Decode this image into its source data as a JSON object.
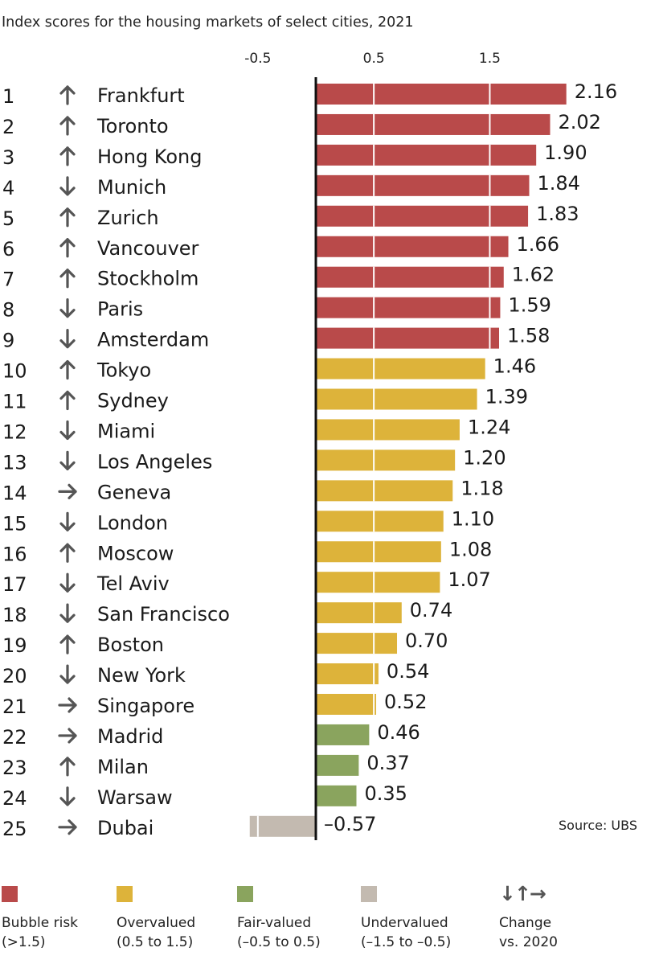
{
  "chart_data": {
    "type": "bar",
    "orientation": "horizontal",
    "title": "Index scores for the housing markets of select cities, 2021",
    "x_ticks": [
      "-0.5",
      "0.5",
      "1.5"
    ],
    "tick_values": [
      -0.5,
      0.5,
      1.5
    ],
    "xlim": [
      -0.57,
      2.2
    ],
    "grid": true,
    "rows": [
      {
        "rank": "1",
        "change": "up",
        "city": "Frankfurt",
        "value": 2.16,
        "label": "2.16",
        "category": "bubble"
      },
      {
        "rank": "2",
        "change": "up",
        "city": "Toronto",
        "value": 2.02,
        "label": "2.02",
        "category": "bubble"
      },
      {
        "rank": "3",
        "change": "up",
        "city": "Hong Kong",
        "value": 1.9,
        "label": "1.90",
        "category": "bubble"
      },
      {
        "rank": "4",
        "change": "down",
        "city": "Munich",
        "value": 1.84,
        "label": "1.84",
        "category": "bubble"
      },
      {
        "rank": "5",
        "change": "up",
        "city": "Zurich",
        "value": 1.83,
        "label": "1.83",
        "category": "bubble"
      },
      {
        "rank": "6",
        "change": "up",
        "city": "Vancouver",
        "value": 1.66,
        "label": "1.66",
        "category": "bubble"
      },
      {
        "rank": "7",
        "change": "up",
        "city": "Stockholm",
        "value": 1.62,
        "label": "1.62",
        "category": "bubble"
      },
      {
        "rank": "8",
        "change": "down",
        "city": "Paris",
        "value": 1.59,
        "label": "1.59",
        "category": "bubble"
      },
      {
        "rank": "9",
        "change": "down",
        "city": "Amsterdam",
        "value": 1.58,
        "label": "1.58",
        "category": "bubble"
      },
      {
        "rank": "10",
        "change": "up",
        "city": "Tokyo",
        "value": 1.46,
        "label": "1.46",
        "category": "overvalued"
      },
      {
        "rank": "11",
        "change": "up",
        "city": "Sydney",
        "value": 1.39,
        "label": "1.39",
        "category": "overvalued"
      },
      {
        "rank": "12",
        "change": "down",
        "city": "Miami",
        "value": 1.24,
        "label": "1.24",
        "category": "overvalued"
      },
      {
        "rank": "13",
        "change": "down",
        "city": "Los Angeles",
        "value": 1.2,
        "label": "1.20",
        "category": "overvalued"
      },
      {
        "rank": "14",
        "change": "right",
        "city": "Geneva",
        "value": 1.18,
        "label": "1.18",
        "category": "overvalued"
      },
      {
        "rank": "15",
        "change": "down",
        "city": "London",
        "value": 1.1,
        "label": "1.10",
        "category": "overvalued"
      },
      {
        "rank": "16",
        "change": "up",
        "city": "Moscow",
        "value": 1.08,
        "label": "1.08",
        "category": "overvalued"
      },
      {
        "rank": "17",
        "change": "down",
        "city": "Tel Aviv",
        "value": 1.07,
        "label": "1.07",
        "category": "overvalued"
      },
      {
        "rank": "18",
        "change": "down",
        "city": "San Francisco",
        "value": 0.74,
        "label": "0.74",
        "category": "overvalued"
      },
      {
        "rank": "19",
        "change": "up",
        "city": "Boston",
        "value": 0.7,
        "label": "0.70",
        "category": "overvalued"
      },
      {
        "rank": "20",
        "change": "down",
        "city": "New York",
        "value": 0.54,
        "label": "0.54",
        "category": "overvalued"
      },
      {
        "rank": "21",
        "change": "right",
        "city": "Singapore",
        "value": 0.52,
        "label": "0.52",
        "category": "overvalued"
      },
      {
        "rank": "22",
        "change": "right",
        "city": "Madrid",
        "value": 0.46,
        "label": "0.46",
        "category": "fair"
      },
      {
        "rank": "23",
        "change": "up",
        "city": "Milan",
        "value": 0.37,
        "label": "0.37",
        "category": "fair"
      },
      {
        "rank": "24",
        "change": "down",
        "city": "Warsaw",
        "value": 0.35,
        "label": "0.35",
        "category": "fair"
      },
      {
        "rank": "25",
        "change": "right",
        "city": "Dubai",
        "value": -0.57,
        "label": "–0.57",
        "category": "undervalued"
      }
    ],
    "annotation": "Source: UBS"
  },
  "colors": {
    "bubble": "#b94a4a",
    "overvalued": "#ddb33a",
    "fair": "#8aa45e",
    "undervalued": "#c3bab0",
    "axis": "#111111",
    "grid": "#ffffff",
    "arrow": "#555555"
  },
  "icons": {
    "up": "arrow-up-icon",
    "down": "arrow-down-icon",
    "right": "arrow-right-icon"
  },
  "legend": [
    {
      "key": "bubble",
      "line1": "Bubble risk",
      "line2": "(>1.5)"
    },
    {
      "key": "overvalued",
      "line1": "Overvalued",
      "line2": "(0.5 to 1.5)"
    },
    {
      "key": "fair",
      "line1": "Fair-valued",
      "line2": "(–0.5 to 0.5)"
    },
    {
      "key": "undervalued",
      "line1": "Undervalued",
      "line2": "(–1.5 to –0.5)"
    }
  ],
  "change_legend": {
    "glyphs": "↓↑→",
    "line1": "Change",
    "line2": "vs. 2020"
  }
}
